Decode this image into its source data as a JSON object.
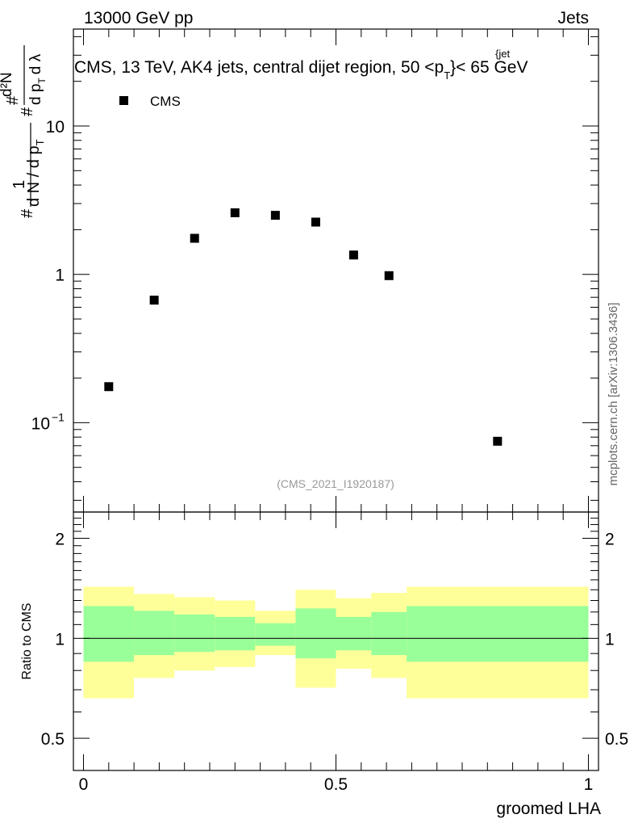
{
  "header": {
    "energy_label": "13000 GeV pp",
    "category_label": "Jets"
  },
  "side_label": "mcplots.cern.ch [arXiv:1306.3436]",
  "chart_data": [
    {
      "type": "scatter",
      "title": "CMS, 13 TeV, AK4 jets, central dijet region, 50 <p",
      "title_sub": "T",
      "title_sup": "{jet",
      "title_suffix": "}< 65 GeV",
      "ylabel_parts": {
        "prefix": "#",
        "fraction_num": "1",
        "fraction_den": "d N / d p",
        "den_sub": "T",
        "hash2": "#",
        "hash3": "#",
        "dN_num": "d²N",
        "dpt_den": "d p",
        "dpt_sub": "T",
        "dlambda": "d λ"
      },
      "yscale": "log",
      "ylim": [
        0.025,
        45
      ],
      "xlim": [
        -0.02,
        1.02
      ],
      "yticks": [
        {
          "value": 0.1,
          "label": "10",
          "exp": "−1"
        },
        {
          "value": 1,
          "label": "1",
          "exp": ""
        },
        {
          "value": 10,
          "label": "10",
          "exp": ""
        }
      ],
      "legend": {
        "placement": "top-left",
        "entries": [
          "CMS"
        ]
      },
      "watermark": "(CMS_2021_I1920187)",
      "series": [
        {
          "name": "CMS",
          "marker": "square",
          "x": [
            0.05,
            0.14,
            0.22,
            0.3,
            0.38,
            0.46,
            0.535,
            0.605,
            0.82
          ],
          "y": [
            0.175,
            0.67,
            1.75,
            2.6,
            2.5,
            2.25,
            1.35,
            0.98,
            0.075
          ]
        }
      ]
    },
    {
      "type": "area",
      "ylabel": "Ratio to CMS",
      "xlabel": "groomed LHA",
      "yscale": "log",
      "ylim": [
        0.4,
        2.4
      ],
      "xlim": [
        -0.02,
        1.02
      ],
      "xticks": [
        {
          "value": 0,
          "label": "0"
        },
        {
          "value": 0.5,
          "label": "0.5"
        },
        {
          "value": 1,
          "label": "1"
        }
      ],
      "yticks": [
        {
          "value": 0.5,
          "label": "0.5"
        },
        {
          "value": 1,
          "label": "1"
        },
        {
          "value": 2,
          "label": "2"
        }
      ],
      "reference_line": 1,
      "colors": {
        "inner_band": "#99ff99",
        "outer_band": "#ffff99"
      },
      "bins": [
        {
          "x0": 0.0,
          "x1": 0.1,
          "outer": [
            0.66,
            1.43
          ],
          "inner": [
            0.85,
            1.25
          ]
        },
        {
          "x0": 0.1,
          "x1": 0.18,
          "outer": [
            0.76,
            1.36
          ],
          "inner": [
            0.89,
            1.21
          ]
        },
        {
          "x0": 0.18,
          "x1": 0.26,
          "outer": [
            0.8,
            1.33
          ],
          "inner": [
            0.91,
            1.18
          ]
        },
        {
          "x0": 0.26,
          "x1": 0.34,
          "outer": [
            0.82,
            1.3
          ],
          "inner": [
            0.92,
            1.16
          ]
        },
        {
          "x0": 0.34,
          "x1": 0.42,
          "outer": [
            0.89,
            1.21
          ],
          "inner": [
            0.95,
            1.11
          ]
        },
        {
          "x0": 0.42,
          "x1": 0.5,
          "outer": [
            0.71,
            1.4
          ],
          "inner": [
            0.87,
            1.23
          ]
        },
        {
          "x0": 0.5,
          "x1": 0.57,
          "outer": [
            0.81,
            1.32
          ],
          "inner": [
            0.92,
            1.16
          ]
        },
        {
          "x0": 0.57,
          "x1": 0.64,
          "outer": [
            0.76,
            1.37
          ],
          "inner": [
            0.89,
            1.2
          ]
        },
        {
          "x0": 0.64,
          "x1": 1.0,
          "outer": [
            0.66,
            1.43
          ],
          "inner": [
            0.85,
            1.25
          ]
        }
      ]
    }
  ]
}
